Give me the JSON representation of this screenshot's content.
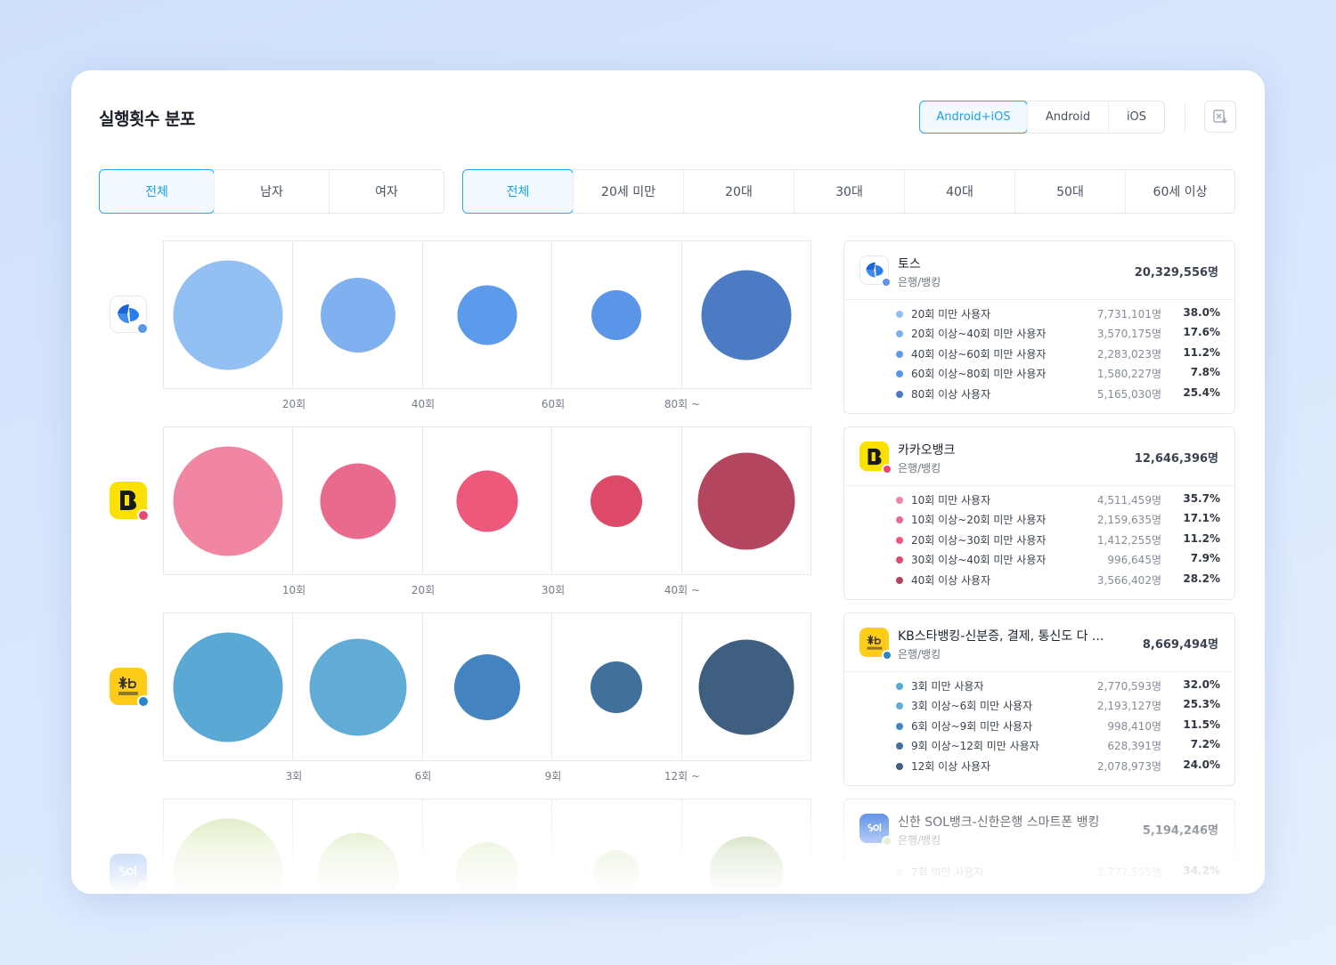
{
  "title": "실행횟수 분포",
  "platform_tabs": [
    {
      "label": "Android+iOS",
      "active": true
    },
    {
      "label": "Android",
      "active": false
    },
    {
      "label": "iOS",
      "active": false
    }
  ],
  "export_icon": "excel-download-icon",
  "gender_tabs": [
    {
      "label": "전체",
      "active": true
    },
    {
      "label": "남자",
      "active": false
    },
    {
      "label": "여자",
      "active": false
    }
  ],
  "age_tabs": [
    {
      "label": "전체",
      "active": true
    },
    {
      "label": "20세 미만",
      "active": false
    },
    {
      "label": "20대",
      "active": false
    },
    {
      "label": "30대",
      "active": false
    },
    {
      "label": "40대",
      "active": false
    },
    {
      "label": "50대",
      "active": false
    },
    {
      "label": "60세 이상",
      "active": false
    }
  ],
  "apps": [
    {
      "name": "토스",
      "category": "은행/뱅킹",
      "total": "20,329,556명",
      "icon": "toss-logo-icon",
      "icon_bg": "#ffffff",
      "badge_color": "#5b95e8",
      "bubble_colors": [
        "#93c0f2",
        "#7fb0ef",
        "#5c9bec",
        "#5b95e8",
        "#4a7bc3"
      ],
      "x_labels": [
        "20회",
        "40회",
        "60회",
        "80회 ~"
      ],
      "items": [
        {
          "label": "20회 미만 사용자",
          "count": "7,731,101명",
          "pct": "38.0%"
        },
        {
          "label": "20회 이상~40회 미만 사용자",
          "count": "3,570,175명",
          "pct": "17.6%"
        },
        {
          "label": "40회 이상~60회 미만 사용자",
          "count": "2,283,023명",
          "pct": "11.2%"
        },
        {
          "label": "60회 이상~80회 미만 사용자",
          "count": "1,580,227명",
          "pct": "7.8%"
        },
        {
          "label": "80회 이상 사용자",
          "count": "5,165,030명",
          "pct": "25.4%"
        }
      ]
    },
    {
      "name": "카카오뱅크",
      "category": "은행/뱅킹",
      "total": "12,646,396명",
      "icon": "kakaobank-logo-icon",
      "icon_bg": "#fbe000",
      "badge_color": "#e6496d",
      "bubble_colors": [
        "#f086a2",
        "#e96a8c",
        "#ee587b",
        "#dc4a68",
        "#b3465e"
      ],
      "x_labels": [
        "10회",
        "20회",
        "30회",
        "40회 ~"
      ],
      "items": [
        {
          "label": "10회 미만 사용자",
          "count": "4,511,459명",
          "pct": "35.7%"
        },
        {
          "label": "10회 이상~20회 미만 사용자",
          "count": "2,159,635명",
          "pct": "17.1%"
        },
        {
          "label": "20회 이상~30회 미만 사용자",
          "count": "1,412,255명",
          "pct": "11.2%"
        },
        {
          "label": "30회 이상~40회 미만 사용자",
          "count": "996,645명",
          "pct": "7.9%"
        },
        {
          "label": "40회 이상 사용자",
          "count": "3,566,402명",
          "pct": "28.2%"
        }
      ]
    },
    {
      "name": "KB스타뱅킹-신분증, 결제, 통신도 다 ...",
      "category": "은행/뱅킹",
      "total": "8,669,494명",
      "icon": "kb-star-logo-icon",
      "icon_bg": "#ffcc1a",
      "badge_color": "#2a86c4",
      "bubble_colors": [
        "#5aa9d4",
        "#61acd6",
        "#4383bf",
        "#41709c",
        "#3e5f80"
      ],
      "x_labels": [
        "3회",
        "6회",
        "9회",
        "12회 ~"
      ],
      "items": [
        {
          "label": "3회 미만 사용자",
          "count": "2,770,593명",
          "pct": "32.0%"
        },
        {
          "label": "3회 이상~6회 미만 사용자",
          "count": "2,193,127명",
          "pct": "25.3%"
        },
        {
          "label": "6회 이상~9회 미만 사용자",
          "count": "998,410명",
          "pct": "11.5%"
        },
        {
          "label": "9회 이상~12회 미만 사용자",
          "count": "628,391명",
          "pct": "7.2%"
        },
        {
          "label": "12회 이상 사용자",
          "count": "2,078,973명",
          "pct": "24.0%"
        }
      ]
    },
    {
      "name": "신한 SOL뱅크-신한은행 스마트폰 뱅킹",
      "category": "은행/뱅킹",
      "total": "5,194,246명",
      "icon": "shinhan-sol-logo-icon",
      "icon_bg": "#2f6fe0",
      "badge_color": "#b7d98a",
      "bubble_colors": [
        "#d3e6b0",
        "#cde3a9",
        "#cfe4ad",
        "#c9e0a5",
        "#a3c386"
      ],
      "x_labels": [
        "",
        "",
        "",
        ""
      ],
      "items": [
        {
          "label": "7회 미만 사용자",
          "count": "1,777,595명",
          "pct": "34.2%"
        }
      ]
    }
  ]
}
